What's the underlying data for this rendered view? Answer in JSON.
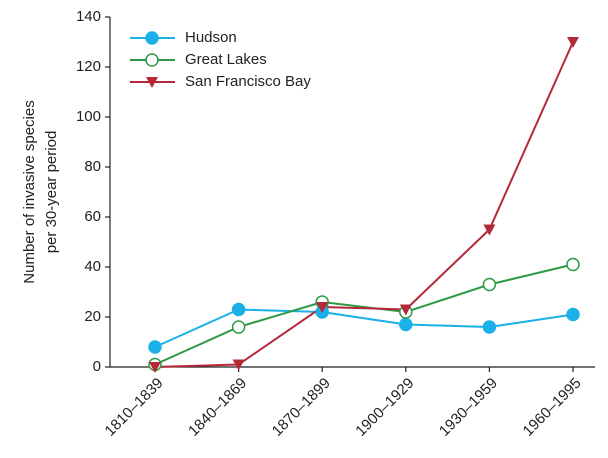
{
  "chart_data": {
    "type": "line",
    "ylabel": [
      "Number of invasive species",
      "per 30-year period"
    ],
    "categories": [
      "1810–1839",
      "1840–1869",
      "1870–1899",
      "1900–1929",
      "1930–1959",
      "1960–1995"
    ],
    "series": [
      {
        "name": "Hudson",
        "color": "#1ab0e8",
        "marker": "circle",
        "values": [
          8,
          23,
          22,
          17,
          16,
          21
        ]
      },
      {
        "name": "Great Lakes",
        "color": "#2e9a45",
        "marker": "open-circle",
        "values": [
          1,
          16,
          26,
          22,
          33,
          41
        ]
      },
      {
        "name": "San Francisco Bay",
        "color": "#b5283a",
        "marker": "triangle-down",
        "values": [
          0,
          1,
          24,
          23,
          55,
          130
        ]
      }
    ],
    "ylim": [
      0,
      140
    ],
    "yticks": [
      0,
      20,
      40,
      60,
      80,
      100,
      120,
      140
    ],
    "grid": false,
    "legend": "top-left"
  }
}
